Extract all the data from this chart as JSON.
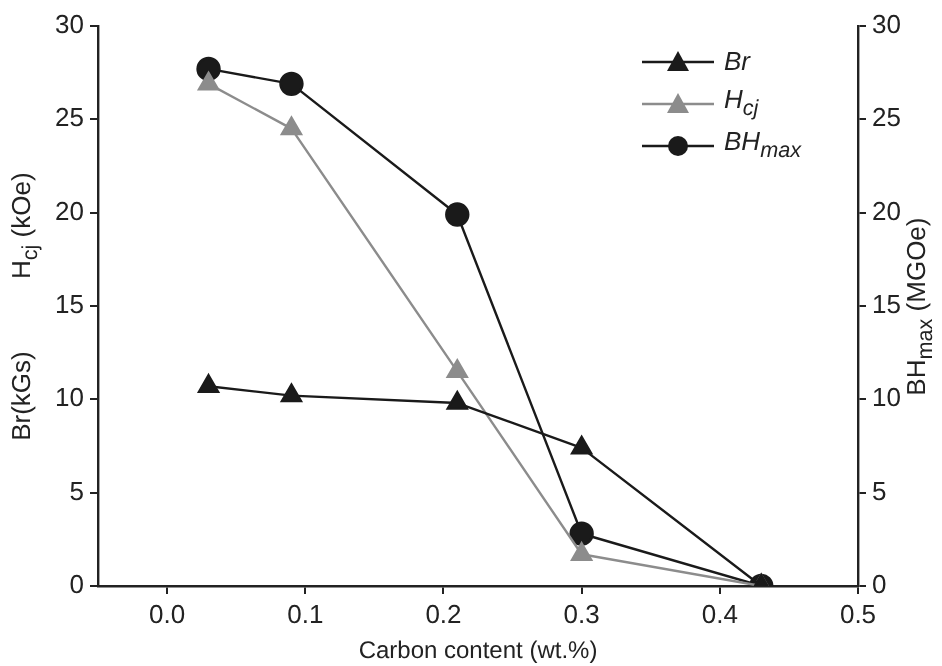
{
  "chart_data": {
    "type": "line",
    "xlabel": "Carbon content (wt.%)",
    "ylabel": "Br(kGs)          H$_{cj}$ (kOe)",
    "y2label": "BH$_{max}$ (MGOe)",
    "x": [
      0.03,
      0.09,
      0.21,
      0.3,
      0.43
    ],
    "xlim": [
      -0.05,
      0.5
    ],
    "xticks": [
      {
        "value": 0.0,
        "label": "0.0"
      },
      {
        "value": 0.1,
        "label": "0.1"
      },
      {
        "value": 0.2,
        "label": "0.2"
      },
      {
        "value": 0.3,
        "label": "0.3"
      },
      {
        "value": 0.4,
        "label": "0.4"
      },
      {
        "value": 0.5,
        "label": "0.5"
      }
    ],
    "ylim": [
      0,
      30
    ],
    "yticks": [
      0,
      5,
      10,
      15,
      20,
      25,
      30
    ],
    "y2lim": [
      0,
      30
    ],
    "y2ticks": [
      0,
      5,
      10,
      15,
      20,
      25,
      30
    ],
    "series": [
      {
        "name": "Br",
        "color": "#1a1a1a",
        "marker": "triangle",
        "values": [
          10.7,
          10.2,
          9.8,
          7.4,
          0
        ]
      },
      {
        "name": "H$_{cj}$",
        "color": "#8c8c8c",
        "marker": "triangle",
        "values": [
          26.9,
          24.5,
          11.5,
          1.7,
          0
        ]
      },
      {
        "name": "BH$_{max}$",
        "color": "#1a1a1a",
        "marker": "circle",
        "axis": "y2",
        "values": [
          27.7,
          26.9,
          19.9,
          2.8,
          0
        ]
      }
    ],
    "grid": false,
    "legend": "top right"
  }
}
